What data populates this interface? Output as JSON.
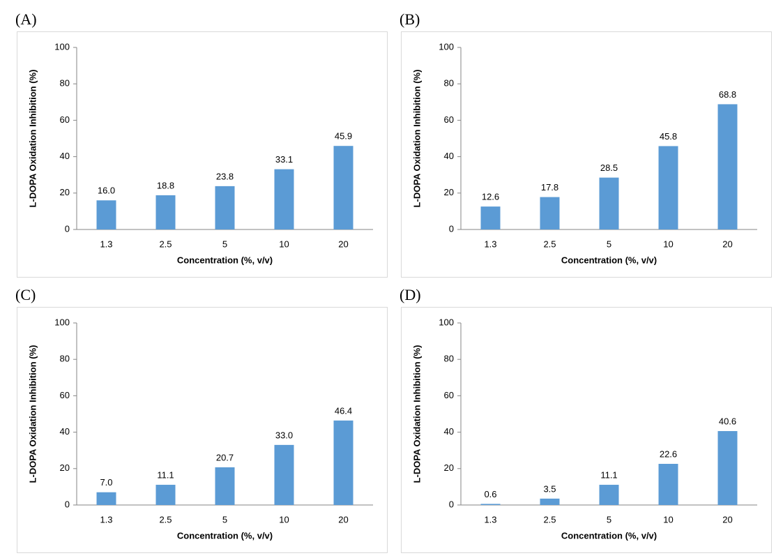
{
  "chart_data": [
    {
      "type": "bar",
      "label": "(A)",
      "categories": [
        "1.3",
        "2.5",
        "5",
        "10",
        "20"
      ],
      "values": [
        16.0,
        18.8,
        23.8,
        33.1,
        45.9
      ],
      "value_labels": [
        "16.0",
        "18.8",
        "23.8",
        "33.1",
        "45.9"
      ],
      "color": "#5b9bd5",
      "xlabel": "Concentration (%, v/v)",
      "ylabel": "L-DOPA Oxidation Inhibition (%)",
      "ylim": [
        0,
        100
      ],
      "yticks": [
        0,
        20,
        40,
        60,
        80,
        100
      ]
    },
    {
      "type": "bar",
      "label": "(B)",
      "categories": [
        "1.3",
        "2.5",
        "5",
        "10",
        "20"
      ],
      "values": [
        12.6,
        17.8,
        28.5,
        45.8,
        68.8
      ],
      "value_labels": [
        "12.6",
        "17.8",
        "28.5",
        "45.8",
        "68.8"
      ],
      "color": "#5b9bd5",
      "xlabel": "Concentration (%,  v/v)",
      "ylabel": "L-DOPA  Oxidation Inhibition (%)",
      "ylim": [
        0,
        100
      ],
      "yticks": [
        0,
        20,
        40,
        60,
        80,
        100
      ]
    },
    {
      "type": "bar",
      "label": "(C)",
      "categories": [
        "1.3",
        "2.5",
        "5",
        "10",
        "20"
      ],
      "values": [
        7.0,
        11.1,
        20.7,
        33.0,
        46.4
      ],
      "value_labels": [
        "7.0",
        "11.1",
        "20.7",
        "33.0",
        "46.4"
      ],
      "color": "#5b9bd5",
      "xlabel": "Concentration (%,  v/v)",
      "ylabel": "L-DOPA Oxidation Inhibition (%)",
      "ylim": [
        0,
        100
      ],
      "yticks": [
        0,
        20,
        40,
        60,
        80,
        100
      ]
    },
    {
      "type": "bar",
      "label": "(D)",
      "categories": [
        "1.3",
        "2.5",
        "5",
        "10",
        "20"
      ],
      "values": [
        0.6,
        3.5,
        11.1,
        22.6,
        40.6
      ],
      "value_labels": [
        "0.6",
        "3.5",
        "11.1",
        "22.6",
        "40.6"
      ],
      "color": "#5b9bd5",
      "xlabel": "Concentration (%,  v/v)",
      "ylabel": "L-DOPA  Oxidation Inhibition (%)",
      "ylim": [
        0,
        100
      ],
      "yticks": [
        0,
        20,
        40,
        60,
        80,
        100
      ]
    }
  ]
}
